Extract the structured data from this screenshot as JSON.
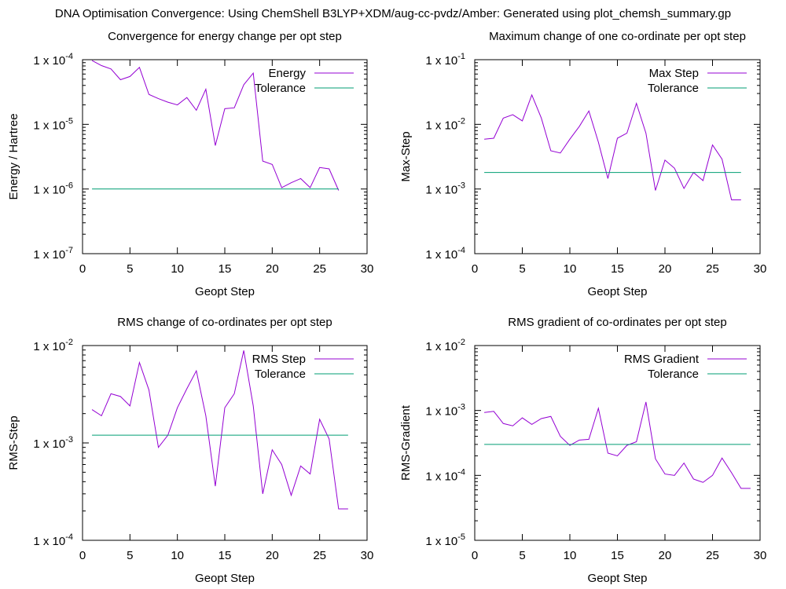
{
  "figure": {
    "title": "DNA Optimisation Convergence: Using ChemShell B3LYP+XDM/aug-cc-pvdz/Amber: Generated using plot_chemsh_summary.gp"
  },
  "colors": {
    "data_line": "#9400d3",
    "tolerance_line": "#009e73"
  },
  "chart_data": [
    {
      "type": "line",
      "title": "Convergence for energy change per opt step",
      "xlabel": "Geopt Step",
      "ylabel": "Energy / Hartree",
      "xlim": [
        0,
        30
      ],
      "ylim": [
        1e-07,
        0.0001
      ],
      "yscale": "log",
      "xticks": [
        0,
        5,
        10,
        15,
        20,
        25,
        30
      ],
      "xtick_labels": [
        "0",
        "5",
        "10",
        "15",
        "20",
        "25",
        "30"
      ],
      "yticks": [
        0.0001,
        1e-05,
        1e-06,
        1e-07
      ],
      "ytick_mantissa": [
        "1 x 10",
        "1 x 10",
        "1 x 10",
        "1 x 10"
      ],
      "ytick_exponent": [
        "-4",
        "-5",
        "-6",
        "-7"
      ],
      "legend_position": "top-right",
      "series": [
        {
          "name": "Energy",
          "x": [
            1,
            2,
            3,
            4,
            5,
            6,
            7,
            8,
            9,
            10,
            11,
            12,
            13,
            14,
            15,
            16,
            17,
            18,
            19,
            20,
            21,
            22,
            23,
            24,
            25,
            26,
            27
          ],
          "y": [
            9.7e-05,
            8.1e-05,
            7.2e-05,
            4.9e-05,
            5.5e-05,
            7.6e-05,
            2.9e-05,
            2.5e-05,
            2.2e-05,
            2e-05,
            2.6e-05,
            1.65e-05,
            3.5e-05,
            4.7e-06,
            1.75e-05,
            1.8e-05,
            4.1e-05,
            6.2e-05,
            2.7e-06,
            2.4e-06,
            1.05e-06,
            1.25e-06,
            1.45e-06,
            1.05e-06,
            2.15e-06,
            2.05e-06,
            9.5e-07
          ]
        },
        {
          "name": "Tolerance",
          "x": [
            1,
            27
          ],
          "y": [
            1e-06,
            1e-06
          ]
        }
      ]
    },
    {
      "type": "line",
      "title": "Maximum change of one co-ordinate per opt step",
      "xlabel": "Geopt Step",
      "ylabel": "Max-Step",
      "xlim": [
        0,
        30
      ],
      "ylim": [
        0.0001,
        0.1
      ],
      "yscale": "log",
      "xticks": [
        0,
        5,
        10,
        15,
        20,
        25,
        30
      ],
      "xtick_labels": [
        "0",
        "5",
        "10",
        "15",
        "20",
        "25",
        "30"
      ],
      "yticks": [
        0.1,
        0.01,
        0.001,
        0.0001
      ],
      "ytick_mantissa": [
        "1 x 10",
        "1 x 10",
        "1 x 10",
        "1 x 10"
      ],
      "ytick_exponent": [
        "-1",
        "-2",
        "-3",
        "-4"
      ],
      "legend_position": "top-right",
      "series": [
        {
          "name": "Max Step",
          "x": [
            1,
            2,
            3,
            4,
            5,
            6,
            7,
            8,
            9,
            10,
            11,
            12,
            13,
            14,
            15,
            16,
            17,
            18,
            19,
            20,
            21,
            22,
            23,
            24,
            25,
            26,
            27,
            28
          ],
          "y": [
            0.0059,
            0.0061,
            0.0125,
            0.0141,
            0.0113,
            0.0285,
            0.0125,
            0.0039,
            0.0036,
            0.0059,
            0.0093,
            0.0161,
            0.0053,
            0.00145,
            0.0061,
            0.0073,
            0.0211,
            0.0073,
            0.00095,
            0.0028,
            0.0021,
            0.00102,
            0.0018,
            0.00135,
            0.0048,
            0.0029,
            0.00068,
            0.00068
          ]
        },
        {
          "name": "Tolerance",
          "x": [
            1,
            28
          ],
          "y": [
            0.0018,
            0.0018
          ]
        }
      ]
    },
    {
      "type": "line",
      "title": "RMS change of co-ordinates per opt step",
      "xlabel": "Geopt Step",
      "ylabel": "RMS-Step",
      "xlim": [
        0,
        30
      ],
      "ylim": [
        0.0001,
        0.01
      ],
      "yscale": "log",
      "xticks": [
        0,
        5,
        10,
        15,
        20,
        25,
        30
      ],
      "xtick_labels": [
        "0",
        "5",
        "10",
        "15",
        "20",
        "25",
        "30"
      ],
      "yticks": [
        0.01,
        0.001,
        0.0001
      ],
      "ytick_mantissa": [
        "1 x 10",
        "1 x 10",
        "1 x 10"
      ],
      "ytick_exponent": [
        "-2",
        "-3",
        "-4"
      ],
      "legend_position": "top-right",
      "series": [
        {
          "name": "RMS Step",
          "x": [
            1,
            2,
            3,
            4,
            5,
            6,
            7,
            8,
            9,
            10,
            11,
            12,
            13,
            14,
            15,
            16,
            17,
            18,
            19,
            20,
            21,
            22,
            23,
            24,
            25,
            26,
            27,
            28
          ],
          "y": [
            0.0022,
            0.0019,
            0.0032,
            0.003,
            0.0024,
            0.0067,
            0.0035,
            0.0009,
            0.0012,
            0.0023,
            0.0036,
            0.0055,
            0.0019,
            0.00036,
            0.0023,
            0.0032,
            0.0089,
            0.0024,
            0.0003,
            0.00085,
            0.0006,
            0.00029,
            0.00058,
            0.00048,
            0.00175,
            0.0011,
            0.00021,
            0.00021
          ]
        },
        {
          "name": "Tolerance",
          "x": [
            1,
            28
          ],
          "y": [
            0.0012,
            0.0012
          ]
        }
      ]
    },
    {
      "type": "line",
      "title": "RMS gradient of co-ordinates per opt step",
      "xlabel": "Geopt Step",
      "ylabel": "RMS-Gradient",
      "xlim": [
        0,
        30
      ],
      "ylim": [
        1e-05,
        0.01
      ],
      "yscale": "log",
      "xticks": [
        0,
        5,
        10,
        15,
        20,
        25,
        30
      ],
      "xtick_labels": [
        "0",
        "5",
        "10",
        "15",
        "20",
        "25",
        "30"
      ],
      "yticks": [
        0.01,
        0.001,
        0.0001,
        1e-05
      ],
      "ytick_mantissa": [
        "1 x 10",
        "1 x 10",
        "1 x 10",
        "1 x 10"
      ],
      "ytick_exponent": [
        "-2",
        "-3",
        "-4",
        "-5"
      ],
      "legend_position": "top-right",
      "series": [
        {
          "name": "RMS Gradient",
          "x": [
            1,
            2,
            3,
            4,
            5,
            6,
            7,
            8,
            9,
            10,
            11,
            12,
            13,
            14,
            15,
            16,
            17,
            18,
            19,
            20,
            21,
            22,
            23,
            24,
            25,
            26,
            27,
            28,
            29
          ],
          "y": [
            0.00093,
            0.00097,
            0.00063,
            0.00058,
            0.00077,
            0.00061,
            0.00075,
            0.00081,
            0.0004,
            0.00029,
            0.00035,
            0.00036,
            0.00108,
            0.00022,
            0.0002,
            0.00029,
            0.00033,
            0.00135,
            0.00018,
            0.000105,
            0.0001,
            0.000155,
            8.8e-05,
            7.8e-05,
            0.0001,
            0.000185,
            0.00011,
            6.3e-05,
            6.3e-05
          ]
        },
        {
          "name": "Tolerance",
          "x": [
            1,
            29
          ],
          "y": [
            0.0003,
            0.0003
          ]
        }
      ]
    }
  ]
}
